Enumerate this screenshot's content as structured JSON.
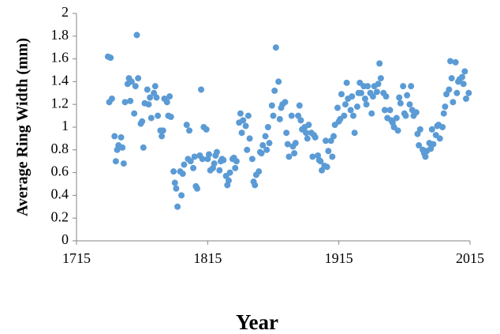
{
  "chart_data": {
    "type": "scatter",
    "x_label": "Year",
    "y_label": "Average Ring Width (mm)",
    "color": "#5b9bd5",
    "xlim": [
      1715,
      2015
    ],
    "xticks": [
      1715,
      1815,
      1915,
      2015
    ],
    "ylim": [
      0,
      2
    ],
    "yticks": [
      0,
      0.2,
      0.4,
      0.6,
      0.8,
      1,
      1.2,
      1.4,
      1.6,
      1.8,
      2
    ],
    "x": [
      1739,
      1740,
      1741,
      1742,
      1744,
      1745,
      1746,
      1747,
      1749,
      1750,
      1751,
      1752,
      1754,
      1755,
      1756,
      1757,
      1759,
      1760,
      1761,
      1762,
      1764,
      1765,
      1766,
      1767,
      1769,
      1770,
      1771,
      1772,
      1774,
      1775,
      1776,
      1777,
      1779,
      1780,
      1781,
      1782,
      1784,
      1785,
      1786,
      1787,
      1789,
      1790,
      1791,
      1792,
      1794,
      1795,
      1796,
      1797,
      1799,
      1800,
      1801,
      1802,
      1804,
      1805,
      1806,
      1807,
      1809,
      1810,
      1811,
      1812,
      1814,
      1815,
      1816,
      1817,
      1819,
      1820,
      1821,
      1822,
      1824,
      1825,
      1826,
      1827,
      1829,
      1830,
      1831,
      1832,
      1834,
      1835,
      1836,
      1837,
      1839,
      1840,
      1841,
      1842,
      1844,
      1845,
      1846,
      1847,
      1849,
      1850,
      1851,
      1852,
      1854,
      1855,
      1856,
      1857,
      1859,
      1860,
      1861,
      1862,
      1864,
      1865,
      1866,
      1867,
      1869,
      1870,
      1871,
      1872,
      1874,
      1875,
      1876,
      1877,
      1879,
      1880,
      1881,
      1882,
      1884,
      1885,
      1886,
      1887,
      1889,
      1890,
      1891,
      1892,
      1894,
      1895,
      1896,
      1897,
      1899,
      1900,
      1901,
      1902,
      1904,
      1905,
      1906,
      1907,
      1909,
      1910,
      1911,
      1912,
      1914,
      1915,
      1916,
      1917,
      1919,
      1920,
      1921,
      1922,
      1924,
      1925,
      1926,
      1927,
      1929,
      1930,
      1931,
      1932,
      1934,
      1935,
      1936,
      1937,
      1939,
      1940,
      1941,
      1942,
      1944,
      1945,
      1946,
      1947,
      1949,
      1950,
      1951,
      1952,
      1954,
      1955,
      1956,
      1957,
      1959,
      1960,
      1961,
      1962,
      1964,
      1965,
      1966,
      1967,
      1969,
      1970,
      1971,
      1972,
      1974,
      1975,
      1976,
      1977,
      1979,
      1980,
      1981,
      1982,
      1984,
      1985,
      1986,
      1987,
      1989,
      1990,
      1991,
      1992,
      1994,
      1995,
      1996,
      1997,
      1999,
      2000,
      2001,
      2002,
      2004,
      2005,
      2006,
      2007,
      2009,
      2010,
      2011,
      2012,
      2014
    ],
    "y": [
      1.62,
      1.22,
      1.61,
      1.25,
      0.92,
      0.7,
      0.8,
      0.84,
      0.91,
      0.82,
      0.68,
      1.22,
      1.38,
      1.43,
      1.23,
      1.4,
      1.12,
      1.36,
      1.81,
      1.43,
      1.03,
      1.05,
      0.82,
      1.21,
      1.33,
      1.2,
      1.26,
      1.08,
      1.3,
      1.36,
      1.26,
      1.1,
      0.97,
      0.92,
      0.97,
      1.25,
      1.22,
      1.1,
      1.27,
      1.09,
      0.61,
      0.51,
      0.46,
      0.3,
      0.61,
      0.4,
      0.59,
      0.67,
      1.02,
      0.72,
      0.97,
      0.7,
      0.64,
      0.74,
      0.48,
      0.46,
      0.75,
      1.33,
      0.72,
      1.0,
      0.98,
      0.72,
      0.76,
      0.62,
      0.64,
      0.68,
      0.75,
      0.78,
      0.62,
      0.7,
      0.72,
      0.71,
      0.57,
      0.49,
      0.53,
      0.6,
      0.72,
      0.73,
      0.64,
      0.7,
      1.04,
      1.12,
      0.95,
      1.06,
      1.01,
      0.8,
      1.1,
      0.9,
      0.72,
      0.52,
      0.49,
      0.58,
      0.61,
      0.78,
      0.77,
      0.84,
      0.92,
      0.8,
      1.0,
      0.86,
      1.19,
      1.1,
      1.32,
      1.7,
      1.4,
      1.07,
      1.17,
      1.2,
      1.22,
      0.95,
      0.85,
      0.74,
      1.1,
      0.83,
      0.77,
      0.86,
      1.1,
      1.19,
      1.06,
      0.98,
      1.0,
      0.95,
      0.9,
      1.02,
      0.95,
      0.74,
      0.93,
      0.91,
      0.75,
      0.71,
      0.7,
      0.62,
      0.66,
      0.88,
      0.65,
      0.79,
      0.88,
      0.74,
      0.92,
      1.02,
      1.17,
      1.05,
      1.07,
      1.29,
      1.1,
      1.2,
      1.39,
      1.25,
      1.15,
      1.27,
      1.1,
      0.95,
      1.18,
      1.3,
      1.39,
      1.3,
      1.36,
      1.25,
      1.2,
      1.36,
      1.3,
      1.12,
      1.27,
      1.36,
      1.31,
      1.38,
      1.56,
      1.43,
      1.3,
      1.15,
      1.27,
      1.08,
      1.15,
      1.06,
      1.04,
      1.0,
      1.08,
      0.97,
      1.26,
      1.21,
      1.36,
      1.12,
      1.1,
      1.28,
      1.2,
      1.36,
      1.15,
      1.1,
      1.13,
      0.94,
      0.84,
      0.98,
      0.8,
      0.77,
      0.74,
      0.79,
      0.86,
      0.81,
      0.98,
      0.85,
      0.93,
      1.01,
      1.02,
      0.9,
      1.0,
      1.12,
      1.18,
      1.29,
      1.33,
      1.58,
      1.43,
      1.22,
      1.57,
      1.3,
      1.4,
      1.42,
      1.44,
      1.38,
      1.49,
      1.25,
      1.3
    ]
  }
}
